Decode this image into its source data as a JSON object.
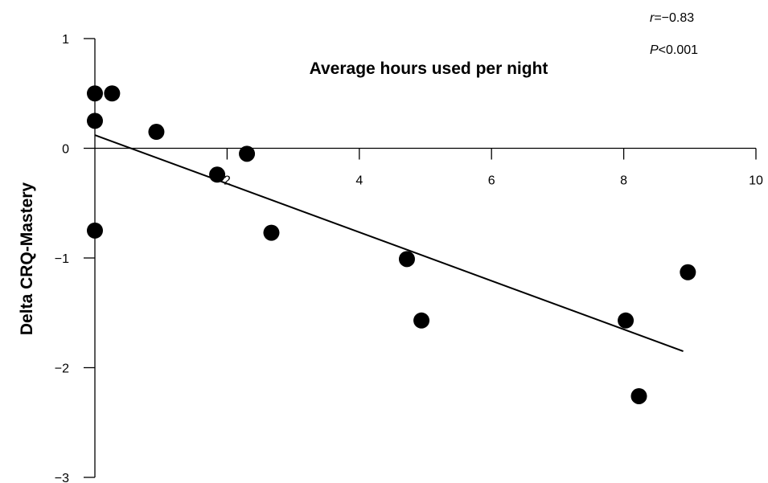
{
  "chart_data": {
    "type": "scatter",
    "title": "Average hours used per night",
    "xlabel": "",
    "ylabel": "Delta CRQ-Mastery",
    "xlim": [
      0,
      10
    ],
    "ylim": [
      -3,
      1
    ],
    "x_ticks": [
      "2",
      "4",
      "6",
      "8",
      "10"
    ],
    "y_ticks": [
      "1",
      "0",
      "−1",
      "−2",
      "−3"
    ],
    "annotations": {
      "r": "=−0.83",
      "r_label": "r",
      "p": "<0.001",
      "p_label": "P"
    },
    "series": [
      {
        "points": [
          {
            "x": 0.0,
            "y": 0.5
          },
          {
            "x": 0.26,
            "y": 0.5
          },
          {
            "x": 0.0,
            "y": 0.25
          },
          {
            "x": 0.93,
            "y": 0.15
          },
          {
            "x": 2.3,
            "y": -0.05
          },
          {
            "x": 1.85,
            "y": -0.24
          },
          {
            "x": 0.0,
            "y": -0.75
          },
          {
            "x": 2.67,
            "y": -0.77
          },
          {
            "x": 4.72,
            "y": -1.01
          },
          {
            "x": 4.94,
            "y": -1.57
          },
          {
            "x": 8.97,
            "y": -1.13
          },
          {
            "x": 8.03,
            "y": -1.57
          },
          {
            "x": 8.23,
            "y": -2.26
          }
        ]
      }
    ],
    "trendline": {
      "x": [
        0,
        8.9
      ],
      "y": [
        0.12,
        -1.85
      ]
    },
    "grid": false,
    "legend": "none"
  }
}
